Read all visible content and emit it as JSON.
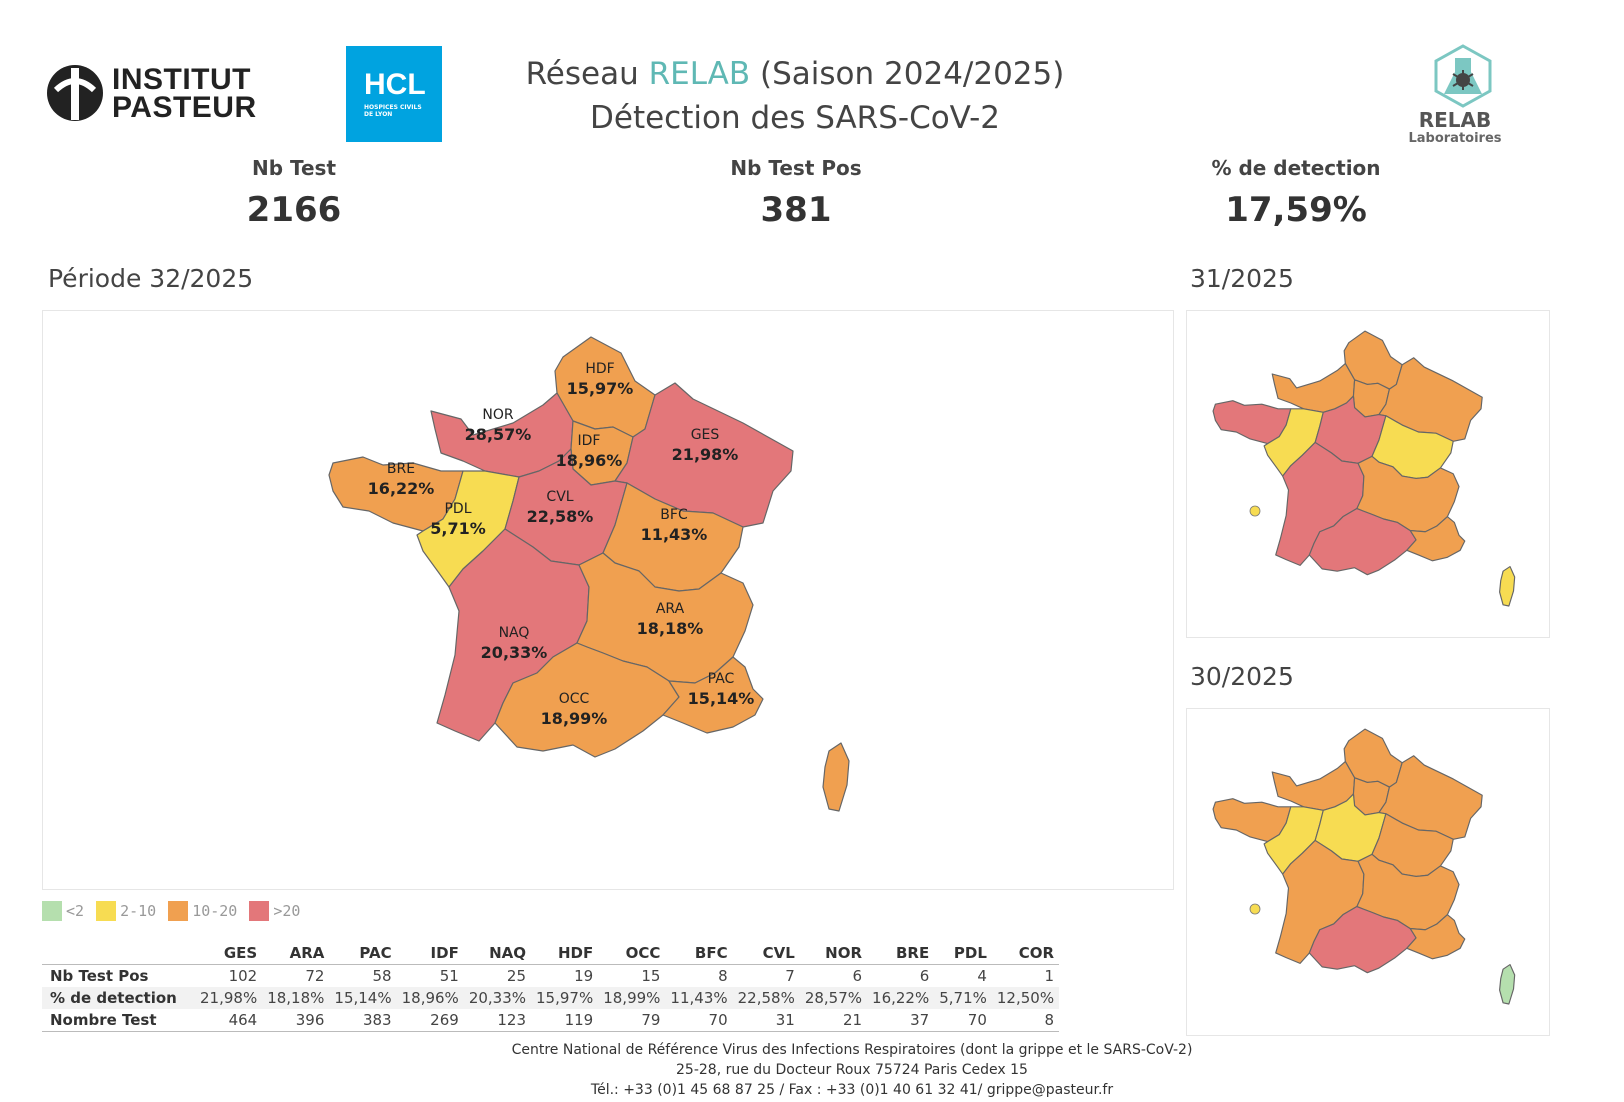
{
  "header": {
    "title_prefix": "Réseau ",
    "title_accent": "RELAB",
    "title_suffix": " (Saison 2024/2025)",
    "subtitle": "Détection des SARS-CoV-2",
    "logo_institut": [
      "INSTITUT",
      "PASTEUR"
    ],
    "logo_hcl": "HCL",
    "logo_hcl_small": [
      "HOSPICES CIVILS",
      "DE LYON"
    ],
    "logo_relab_name": "RELAB",
    "logo_relab_sub": "Laboratoires"
  },
  "kpis": [
    {
      "label": "Nb Test",
      "value": "2166"
    },
    {
      "label": "Nb Test Pos",
      "value": "381"
    },
    {
      "label": "% de detection",
      "value": "17,59%"
    }
  ],
  "main_map": {
    "title": "Période 32/2025",
    "regions": [
      {
        "code": "HDF",
        "value": "15,97%",
        "category": "10-20"
      },
      {
        "code": "NOR",
        "value": "28,57%",
        "category": ">20"
      },
      {
        "code": "IDF",
        "value": "18,96%",
        "category": "10-20"
      },
      {
        "code": "GES",
        "value": "21,98%",
        "category": ">20"
      },
      {
        "code": "BRE",
        "value": "16,22%",
        "category": "10-20"
      },
      {
        "code": "PDL",
        "value": "5,71%",
        "category": "2-10"
      },
      {
        "code": "CVL",
        "value": "22,58%",
        "category": ">20"
      },
      {
        "code": "BFC",
        "value": "11,43%",
        "category": "10-20"
      },
      {
        "code": "ARA",
        "value": "18,18%",
        "category": "10-20"
      },
      {
        "code": "NAQ",
        "value": "20,33%",
        "category": ">20"
      },
      {
        "code": "OCC",
        "value": "18,99%",
        "category": "10-20"
      },
      {
        "code": "PAC",
        "value": "15,14%",
        "category": "10-20"
      },
      {
        "code": "COR",
        "value": "12,50%",
        "category": "10-20"
      }
    ]
  },
  "side_maps": [
    {
      "title": "31/2025",
      "categories": {
        "HDF": "10-20",
        "NOR": "10-20",
        "IDF": "10-20",
        "GES": "10-20",
        "BRE": ">20",
        "PDL": "2-10",
        "CVL": ">20",
        "BFC": "2-10",
        "ARA": "10-20",
        "NAQ": ">20",
        "OCC": ">20",
        "PAC": "10-20",
        "COR": "2-10",
        "DOM": "2-10"
      }
    },
    {
      "title": "30/2025",
      "categories": {
        "HDF": "10-20",
        "NOR": "10-20",
        "IDF": "10-20",
        "GES": "10-20",
        "BRE": "10-20",
        "PDL": "2-10",
        "CVL": "2-10",
        "BFC": "10-20",
        "ARA": "10-20",
        "NAQ": "10-20",
        "OCC": ">20",
        "PAC": "10-20",
        "COR": "<2",
        "DOM": "2-10"
      }
    }
  ],
  "legend": [
    {
      "label": "<2",
      "color": "#b5dfae"
    },
    {
      "label": "2-10",
      "color": "#f7dc52"
    },
    {
      "label": "10-20",
      "color": "#f0a050"
    },
    {
      "label": ">20",
      "color": "#e3777a"
    }
  ],
  "table": {
    "columns": [
      "GES",
      "ARA",
      "PAC",
      "IDF",
      "NAQ",
      "HDF",
      "OCC",
      "BFC",
      "CVL",
      "NOR",
      "BRE",
      "PDL",
      "COR"
    ],
    "rows": [
      {
        "label": "Nb Test Pos",
        "values": [
          "102",
          "72",
          "58",
          "51",
          "25",
          "19",
          "15",
          "8",
          "7",
          "6",
          "6",
          "4",
          "1"
        ]
      },
      {
        "label": "% de detection",
        "values": [
          "21,98%",
          "18,18%",
          "15,14%",
          "18,96%",
          "20,33%",
          "15,97%",
          "18,99%",
          "11,43%",
          "22,58%",
          "28,57%",
          "16,22%",
          "5,71%",
          "12,50%"
        ]
      },
      {
        "label": "Nombre Test",
        "values": [
          "464",
          "396",
          "383",
          "269",
          "123",
          "119",
          "79",
          "70",
          "31",
          "21",
          "37",
          "70",
          "8"
        ]
      }
    ]
  },
  "footer": [
    "Centre National de Référence Virus des Infections Respiratoires (dont la grippe et le SARS-CoV-2)",
    "25-28, rue du Docteur Roux 75724 Paris Cedex 15",
    "Tél.: +33 (0)1 45 68 87 25 / Fax : +33 (0)1  40 61 32 41/ grippe@pasteur.fr"
  ]
}
